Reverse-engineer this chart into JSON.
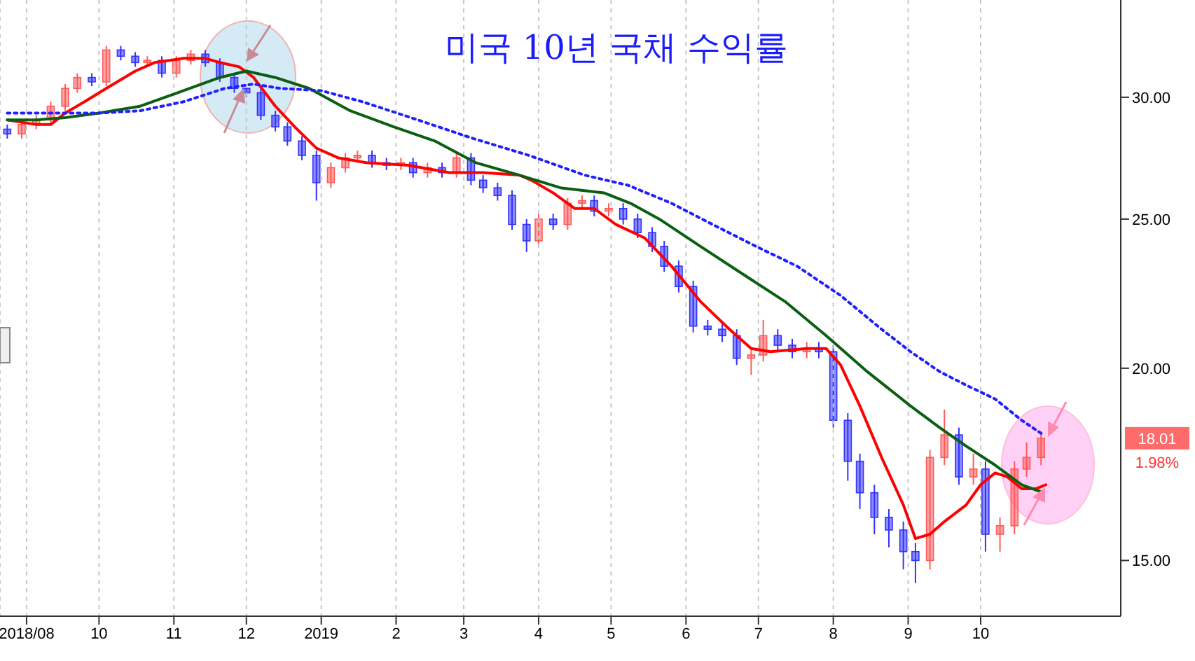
{
  "chart_data": {
    "type": "candlestick",
    "title": "미국 10년 국채 수익률",
    "log": true,
    "grid": "x",
    "marker": "none",
    "xlim": [
      "2018-08-21",
      "2019-11-28"
    ],
    "xticks": [
      {
        "value": "2018-09-01",
        "label": "2018/08"
      },
      {
        "value": "2018-10-01",
        "label": "10"
      },
      {
        "value": "2018-11-01",
        "label": "11"
      },
      {
        "value": "2018-12-01",
        "label": "12"
      },
      {
        "value": "2019-01-01",
        "label": "2019"
      },
      {
        "value": "2019-02-01",
        "label": "2"
      },
      {
        "value": "2019-03-01",
        "label": "3"
      },
      {
        "value": "2019-04-01",
        "label": "4"
      },
      {
        "value": "2019-05-01",
        "label": "5"
      },
      {
        "value": "2019-06-01",
        "label": "6"
      },
      {
        "value": "2019-07-01",
        "label": "7"
      },
      {
        "value": "2019-08-01",
        "label": "8"
      },
      {
        "value": "2019-09-01",
        "label": "9"
      },
      {
        "value": "2019-10-01",
        "label": "10"
      }
    ],
    "ylim": [
      13.8,
      34.7
    ],
    "yticks": [
      {
        "value": 15,
        "label": "15.00"
      },
      {
        "value": 20,
        "label": "20.00"
      },
      {
        "value": 25,
        "label": "25.00"
      },
      {
        "value": 30,
        "label": "30.00"
      }
    ],
    "x": [
      "2018-08-24",
      "2018-08-30",
      "2018-09-05",
      "2018-09-11",
      "2018-09-17",
      "2018-09-22",
      "2018-09-28",
      "2018-10-04",
      "2018-10-10",
      "2018-10-16",
      "2018-10-21",
      "2018-10-27",
      "2018-11-02",
      "2018-11-08",
      "2018-11-14",
      "2018-11-20",
      "2018-11-26",
      "2018-12-01",
      "2018-12-07",
      "2018-12-13",
      "2018-12-18",
      "2018-12-24",
      "2018-12-30",
      "2019-01-05",
      "2019-01-11",
      "2019-01-16",
      "2019-01-22",
      "2019-01-28",
      "2019-02-03",
      "2019-02-08",
      "2019-02-14",
      "2019-02-20",
      "2019-02-26",
      "2019-03-04",
      "2019-03-09",
      "2019-03-15",
      "2019-03-21",
      "2019-03-27",
      "2019-04-01",
      "2019-04-07",
      "2019-04-13",
      "2019-04-19",
      "2019-04-24",
      "2019-04-30",
      "2019-05-06",
      "2019-05-12",
      "2019-05-18",
      "2019-05-23",
      "2019-05-29",
      "2019-06-04",
      "2019-06-10",
      "2019-06-16",
      "2019-06-22",
      "2019-06-28",
      "2019-07-03",
      "2019-07-09",
      "2019-07-15",
      "2019-07-21",
      "2019-07-26",
      "2019-08-01",
      "2019-08-07",
      "2019-08-12",
      "2019-08-18",
      "2019-08-24",
      "2019-08-30",
      "2019-09-04",
      "2019-09-10",
      "2019-09-16",
      "2019-09-22",
      "2019-09-28",
      "2019-10-03",
      "2019-10-09",
      "2019-10-15",
      "2019-10-20",
      "2019-10-26"
    ],
    "ohlc": [
      [
        28.6,
        28.8,
        28.2,
        28.4
      ],
      [
        28.4,
        29.0,
        28.2,
        28.8
      ],
      [
        28.8,
        29.2,
        28.6,
        29.0
      ],
      [
        29.0,
        29.8,
        28.8,
        29.6
      ],
      [
        29.6,
        30.6,
        29.4,
        30.4
      ],
      [
        30.4,
        31.1,
        30.2,
        30.9
      ],
      [
        30.9,
        31.1,
        30.5,
        30.7
      ],
      [
        30.7,
        32.4,
        30.5,
        32.2
      ],
      [
        32.2,
        32.4,
        31.7,
        31.9
      ],
      [
        31.9,
        32.1,
        31.4,
        31.6
      ],
      [
        31.6,
        31.9,
        31.4,
        31.7
      ],
      [
        31.7,
        31.9,
        30.9,
        31.1
      ],
      [
        31.1,
        31.9,
        30.9,
        31.7
      ],
      [
        31.7,
        32.2,
        31.5,
        32.0
      ],
      [
        32.0,
        32.2,
        31.4,
        31.6
      ],
      [
        31.6,
        31.8,
        30.7,
        30.9
      ],
      [
        30.9,
        31.1,
        30.2,
        30.4
      ],
      [
        30.4,
        30.6,
        30.0,
        30.2
      ],
      [
        30.2,
        30.4,
        29.0,
        29.2
      ],
      [
        29.2,
        29.4,
        28.5,
        28.7
      ],
      [
        28.7,
        28.9,
        27.9,
        28.1
      ],
      [
        28.1,
        28.3,
        27.3,
        27.5
      ],
      [
        27.5,
        27.7,
        25.7,
        26.4
      ],
      [
        26.4,
        27.2,
        26.2,
        27.0
      ],
      [
        27.0,
        27.6,
        26.8,
        27.4
      ],
      [
        27.4,
        27.7,
        27.2,
        27.5
      ],
      [
        27.5,
        27.7,
        27.0,
        27.2
      ],
      [
        27.2,
        27.4,
        26.9,
        27.1
      ],
      [
        27.1,
        27.4,
        26.9,
        27.2
      ],
      [
        27.2,
        27.4,
        26.6,
        26.8
      ],
      [
        26.8,
        27.2,
        26.6,
        27.0
      ],
      [
        27.0,
        27.2,
        26.6,
        26.8
      ],
      [
        26.8,
        27.6,
        26.6,
        27.4
      ],
      [
        27.4,
        27.6,
        26.3,
        26.5
      ],
      [
        26.5,
        26.7,
        26.0,
        26.2
      ],
      [
        26.2,
        26.4,
        25.7,
        25.9
      ],
      [
        25.9,
        26.1,
        24.6,
        24.8
      ],
      [
        24.8,
        25.0,
        23.8,
        24.2
      ],
      [
        24.2,
        25.2,
        24.0,
        25.0
      ],
      [
        25.0,
        25.2,
        24.6,
        24.8
      ],
      [
        24.8,
        25.8,
        24.6,
        25.6
      ],
      [
        25.6,
        25.9,
        25.4,
        25.7
      ],
      [
        25.7,
        25.9,
        25.1,
        25.3
      ],
      [
        25.3,
        25.6,
        25.1,
        25.4
      ],
      [
        25.4,
        25.6,
        24.8,
        25.0
      ],
      [
        25.0,
        25.2,
        24.3,
        24.5
      ],
      [
        24.5,
        24.7,
        23.8,
        24.0
      ],
      [
        24.0,
        24.2,
        23.1,
        23.3
      ],
      [
        23.3,
        23.5,
        22.4,
        22.6
      ],
      [
        22.6,
        22.8,
        21.1,
        21.3
      ],
      [
        21.3,
        21.5,
        21.0,
        21.2
      ],
      [
        21.2,
        21.4,
        20.8,
        21.0
      ],
      [
        21.0,
        21.2,
        20.1,
        20.3
      ],
      [
        20.3,
        20.6,
        19.8,
        20.4
      ],
      [
        20.4,
        21.5,
        20.2,
        21.0
      ],
      [
        21.0,
        21.2,
        20.5,
        20.7
      ],
      [
        20.7,
        20.9,
        20.3,
        20.5
      ],
      [
        20.5,
        20.8,
        20.3,
        20.6
      ],
      [
        20.6,
        20.8,
        20.3,
        20.5
      ],
      [
        20.5,
        20.7,
        18.3,
        18.5
      ],
      [
        18.5,
        18.7,
        16.9,
        17.4
      ],
      [
        17.4,
        17.6,
        16.2,
        16.6
      ],
      [
        16.6,
        16.8,
        15.6,
        16.0
      ],
      [
        16.0,
        16.2,
        15.3,
        15.7
      ],
      [
        15.7,
        15.9,
        14.8,
        15.2
      ],
      [
        15.2,
        15.4,
        14.5,
        15.0
      ],
      [
        15.0,
        17.7,
        14.8,
        17.5
      ],
      [
        17.5,
        18.8,
        17.3,
        18.1
      ],
      [
        18.1,
        18.3,
        16.8,
        17.0
      ],
      [
        17.0,
        17.6,
        16.8,
        17.2
      ],
      [
        17.2,
        17.4,
        15.2,
        15.6
      ],
      [
        15.6,
        16.0,
        15.2,
        15.8
      ],
      [
        15.8,
        17.4,
        15.6,
        17.2
      ],
      [
        17.2,
        17.9,
        17.0,
        17.5
      ],
      [
        17.5,
        18.2,
        17.3,
        18.01
      ]
    ],
    "colors": [
      "#3232ff",
      "#ff5a5a",
      "#ff5a5a",
      "#ff5a5a",
      "#ff5a5a",
      "#ff5a5a",
      "#3232ff",
      "#ff5a5a",
      "#3232ff",
      "#3232ff",
      "#ff5a5a",
      "#3232ff",
      "#ff5a5a",
      "#ff5a5a",
      "#3232ff",
      "#3232ff",
      "#3232ff",
      "#3232ff",
      "#3232ff",
      "#3232ff",
      "#3232ff",
      "#3232ff",
      "#3232ff",
      "#ff5a5a",
      "#ff5a5a",
      "#ff5a5a",
      "#3232ff",
      "#3232ff",
      "#ff5a5a",
      "#3232ff",
      "#ff5a5a",
      "#3232ff",
      "#ff5a5a",
      "#3232ff",
      "#3232ff",
      "#3232ff",
      "#3232ff",
      "#3232ff",
      "#ff5a5a",
      "#3232ff",
      "#ff5a5a",
      "#ff5a5a",
      "#3232ff",
      "#ff5a5a",
      "#3232ff",
      "#3232ff",
      "#3232ff",
      "#3232ff",
      "#3232ff",
      "#3232ff",
      "#3232ff",
      "#3232ff",
      "#3232ff",
      "#ff5a5a",
      "#ff5a5a",
      "#3232ff",
      "#3232ff",
      "#ff5a5a",
      "#3232ff",
      "#3232ff",
      "#3232ff",
      "#3232ff",
      "#3232ff",
      "#3232ff",
      "#3232ff",
      "#3232ff",
      "#ff5a5a",
      "#ff5a5a",
      "#3232ff",
      "#ff5a5a",
      "#3232ff",
      "#ff5a5a",
      "#ff5a5a",
      "#ff5a5a",
      "#ff5a5a"
    ],
    "series": [
      {
        "type": "line",
        "color": "#ff0000",
        "line_style": "solid",
        "x": [
          "2018-08-24",
          "2018-09-05",
          "2018-09-11",
          "2018-09-17",
          "2018-09-25",
          "2018-10-04",
          "2018-10-16",
          "2018-10-24",
          "2018-11-05",
          "2018-11-14",
          "2018-11-20",
          "2018-11-28",
          "2018-12-04",
          "2018-12-13",
          "2018-12-21",
          "2018-12-30",
          "2019-01-08",
          "2019-01-20",
          "2019-02-06",
          "2019-02-23",
          "2019-03-09",
          "2019-03-24",
          "2019-03-29",
          "2019-04-07",
          "2019-04-16",
          "2019-04-24",
          "2019-05-03",
          "2019-05-15",
          "2019-05-26",
          "2019-06-07",
          "2019-06-19",
          "2019-06-28",
          "2019-07-06",
          "2019-07-21",
          "2019-07-29",
          "2019-08-04",
          "2019-08-12",
          "2019-08-21",
          "2019-08-30",
          "2019-09-04",
          "2019-09-10",
          "2019-09-16",
          "2019-09-25",
          "2019-10-01",
          "2019-10-07",
          "2019-10-12",
          "2019-10-18",
          "2019-10-24",
          "2019-10-28"
        ],
        "values": [
          29.0,
          28.8,
          28.8,
          29.3,
          29.8,
          30.4,
          31.2,
          31.6,
          31.8,
          31.8,
          31.6,
          31.4,
          30.9,
          29.6,
          28.7,
          27.8,
          27.4,
          27.2,
          27.1,
          26.8,
          26.8,
          26.7,
          26.5,
          26.0,
          25.4,
          25.4,
          24.8,
          24.3,
          23.3,
          22.1,
          21.2,
          20.6,
          20.5,
          20.6,
          20.6,
          20.1,
          18.9,
          17.5,
          16.3,
          15.5,
          15.6,
          15.9,
          16.3,
          16.8,
          17.1,
          17.0,
          16.7,
          16.7,
          16.8
        ]
      },
      {
        "type": "line",
        "color": "#0b5e12",
        "line_style": "solid",
        "x": [
          "2018-08-24",
          "2018-09-05",
          "2018-09-17",
          "2018-10-01",
          "2018-10-18",
          "2018-11-05",
          "2018-11-20",
          "2018-12-01",
          "2018-12-13",
          "2018-12-27",
          "2019-01-13",
          "2019-01-31",
          "2019-02-17",
          "2019-03-06",
          "2019-03-24",
          "2019-04-10",
          "2019-04-28",
          "2019-05-09",
          "2019-05-21",
          "2019-06-07",
          "2019-06-25",
          "2019-07-12",
          "2019-07-29",
          "2019-08-15",
          "2019-09-02",
          "2019-09-14",
          "2019-09-25",
          "2019-10-07",
          "2019-10-18",
          "2019-10-27"
        ],
        "values": [
          29.0,
          29.0,
          29.1,
          29.3,
          29.6,
          30.3,
          30.9,
          31.2,
          30.9,
          30.4,
          29.4,
          28.7,
          28.1,
          27.2,
          26.7,
          26.2,
          26.0,
          25.6,
          25.0,
          24.0,
          23.0,
          22.1,
          21.0,
          19.9,
          18.9,
          18.3,
          17.8,
          17.3,
          16.8,
          16.6
        ]
      },
      {
        "type": "line",
        "color": "#2020ff",
        "line_style": "dotted",
        "x": [
          "2018-08-24",
          "2018-09-07",
          "2018-10-01",
          "2018-10-18",
          "2018-11-05",
          "2018-11-22",
          "2018-12-04",
          "2018-12-15",
          "2019-01-01",
          "2019-01-18",
          "2019-02-10",
          "2019-03-05",
          "2019-03-28",
          "2019-04-20",
          "2019-05-08",
          "2019-05-26",
          "2019-06-12",
          "2019-06-30",
          "2019-07-17",
          "2019-08-04",
          "2019-08-21",
          "2019-09-02",
          "2019-09-14",
          "2019-09-25",
          "2019-10-07",
          "2019-10-18",
          "2019-10-27"
        ],
        "values": [
          29.3,
          29.3,
          29.3,
          29.4,
          29.8,
          30.4,
          30.6,
          30.4,
          30.3,
          29.8,
          29.0,
          28.2,
          27.5,
          26.7,
          26.3,
          25.6,
          24.8,
          24.0,
          23.3,
          22.3,
          21.2,
          20.5,
          19.9,
          19.5,
          19.1,
          18.5,
          18.1
        ]
      }
    ],
    "annotations": [
      "18.01",
      "1.98%"
    ]
  }
}
